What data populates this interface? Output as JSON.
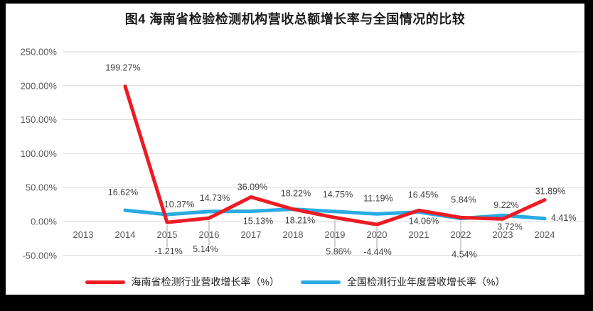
{
  "page": {
    "background_color": "#000000",
    "card_color": "#ffffff"
  },
  "chart_data": {
    "type": "line",
    "title": "图4 海南省检验检测机构营收总额增长率与全国情况的比较",
    "categories": [
      "2013",
      "2014",
      "2015",
      "2016",
      "2017",
      "2018",
      "2019",
      "2020",
      "2021",
      "2022",
      "2023",
      "2024"
    ],
    "series": [
      {
        "name": "海南省检测行业营收增长率（%）",
        "color": "#ed1c24",
        "values": [
          null,
          199.27,
          -1.21,
          5.14,
          36.09,
          18.22,
          5.86,
          -4.44,
          16.45,
          5.84,
          3.72,
          31.89
        ],
        "label_pos": [
          null,
          [
            -3,
            -22
          ],
          [
            2,
            45,
            "leader"
          ],
          [
            -5,
            48,
            "leader"
          ],
          [
            2,
            -10
          ],
          [
            4,
            -18
          ],
          [
            5,
            52,
            "leader"
          ],
          [
            1,
            43,
            "leader"
          ],
          [
            6,
            -18
          ],
          [
            4,
            -21
          ],
          [
            10,
            15
          ],
          [
            8,
            -8
          ]
        ]
      },
      {
        "name": "全国检测行业年度营收增长率（%）",
        "color": "#29abe2",
        "values": [
          null,
          16.62,
          10.37,
          14.73,
          15.13,
          18.21,
          14.75,
          11.19,
          14.06,
          4.54,
          9.22,
          4.41
        ],
        "label_pos": [
          null,
          [
            -3,
            -21
          ],
          [
            17,
            -10
          ],
          [
            8,
            -15
          ],
          [
            10,
            18
          ],
          [
            10,
            20
          ],
          [
            4,
            -20
          ],
          [
            2,
            -18
          ],
          [
            7,
            17
          ],
          [
            5,
            55,
            "leader"
          ],
          [
            5,
            -10
          ],
          [
            9,
            3,
            "start"
          ]
        ]
      }
    ],
    "ylim": [
      -50,
      250
    ],
    "ytick_step": 50,
    "ytick_labels": [
      "250.00%",
      "200.00%",
      "150.00%",
      "100.00%",
      "50.00%",
      "0.00%",
      "-50.00%"
    ],
    "label_format": "0.00%",
    "grid": true,
    "legend_position": "bottom",
    "colors": {
      "gridline": "#d9d9d9",
      "axis_text": "#595959",
      "data_label": "#404040",
      "leader_line": "#a6a6a6"
    }
  }
}
